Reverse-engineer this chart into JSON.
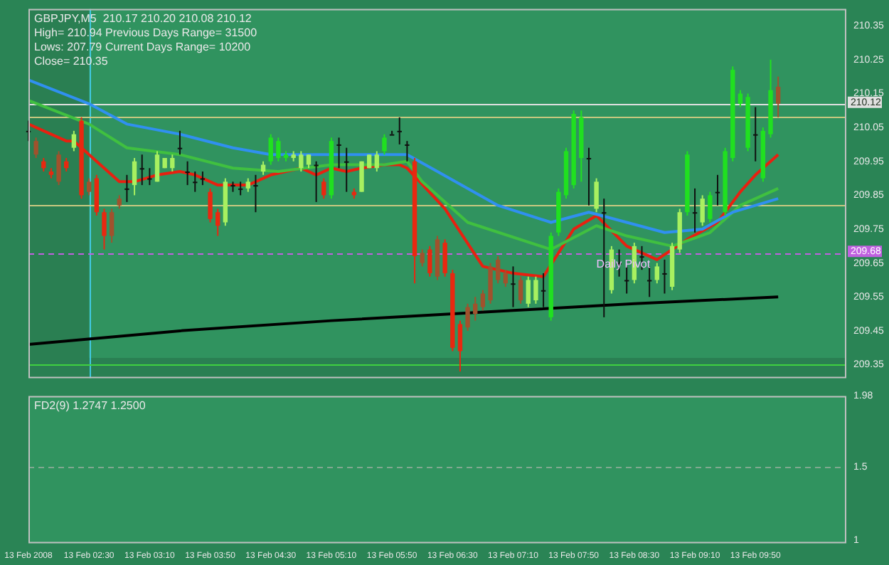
{
  "chart_data": [
    {
      "type": "candlestick",
      "title": "GBPJPY,M5  210.17 210.20 210.08 210.12",
      "annotations": [
        "High= 210.94",
        "Previous Days Range= 31500",
        "Lows: 207.79",
        "Current Days Range= 10200",
        "Close= 210.35",
        {
          "text": "Daily Pivot",
          "x": "2008-02-13T08:05",
          "y": 209.68
        }
      ],
      "x": [
        "2008-02-13T01:50",
        "2008-02-13T01:55",
        "2008-02-13T02:00",
        "2008-02-13T02:05",
        "2008-02-13T02:10",
        "2008-02-13T02:15",
        "2008-02-13T02:20",
        "2008-02-13T02:25",
        "2008-02-13T02:30",
        "2008-02-13T02:35",
        "2008-02-13T02:40",
        "2008-02-13T02:45",
        "2008-02-13T02:50",
        "2008-02-13T02:55",
        "2008-02-13T03:00",
        "2008-02-13T03:05",
        "2008-02-13T03:10",
        "2008-02-13T03:15",
        "2008-02-13T03:20",
        "2008-02-13T03:25",
        "2008-02-13T03:30",
        "2008-02-13T03:35",
        "2008-02-13T03:40",
        "2008-02-13T03:45",
        "2008-02-13T03:50",
        "2008-02-13T03:55",
        "2008-02-13T04:00",
        "2008-02-13T04:05",
        "2008-02-13T04:10",
        "2008-02-13T04:15",
        "2008-02-13T04:20",
        "2008-02-13T04:25",
        "2008-02-13T04:30",
        "2008-02-13T04:35",
        "2008-02-13T04:40",
        "2008-02-13T04:45",
        "2008-02-13T04:50",
        "2008-02-13T04:55",
        "2008-02-13T05:00",
        "2008-02-13T05:05",
        "2008-02-13T05:10",
        "2008-02-13T05:15",
        "2008-02-13T05:20",
        "2008-02-13T05:25",
        "2008-02-13T05:30",
        "2008-02-13T05:35",
        "2008-02-13T05:40",
        "2008-02-13T05:45",
        "2008-02-13T05:50",
        "2008-02-13T05:55",
        "2008-02-13T06:00",
        "2008-02-13T06:05",
        "2008-02-13T06:10",
        "2008-02-13T06:15",
        "2008-02-13T06:20",
        "2008-02-13T06:25",
        "2008-02-13T06:30",
        "2008-02-13T06:35",
        "2008-02-13T06:40",
        "2008-02-13T06:45",
        "2008-02-13T06:50",
        "2008-02-13T06:55",
        "2008-02-13T07:00",
        "2008-02-13T07:05",
        "2008-02-13T07:10",
        "2008-02-13T07:15",
        "2008-02-13T07:20",
        "2008-02-13T07:25",
        "2008-02-13T07:30",
        "2008-02-13T07:35",
        "2008-02-13T07:40",
        "2008-02-13T07:45",
        "2008-02-13T07:50",
        "2008-02-13T07:55",
        "2008-02-13T08:00",
        "2008-02-13T08:05",
        "2008-02-13T08:10",
        "2008-02-13T08:15",
        "2008-02-13T08:20",
        "2008-02-13T08:25",
        "2008-02-13T08:30",
        "2008-02-13T08:35",
        "2008-02-13T08:40",
        "2008-02-13T08:45",
        "2008-02-13T08:50",
        "2008-02-13T08:55",
        "2008-02-13T09:00",
        "2008-02-13T09:05",
        "2008-02-13T09:10",
        "2008-02-13T09:15",
        "2008-02-13T09:20",
        "2008-02-13T09:25",
        "2008-02-13T09:30",
        "2008-02-13T09:35",
        "2008-02-13T09:40",
        "2008-02-13T09:45",
        "2008-02-13T09:50",
        "2008-02-13T09:55",
        "2008-02-13T10:00",
        "2008-02-13T10:05"
      ],
      "ohlc": [
        [
          210.04,
          210.07,
          210.01,
          210.04
        ],
        [
          210.01,
          210.02,
          209.96,
          209.97
        ],
        [
          209.95,
          209.96,
          209.92,
          209.93
        ],
        [
          209.92,
          209.93,
          209.9,
          209.91
        ],
        [
          209.97,
          209.98,
          209.88,
          209.89
        ],
        [
          209.95,
          209.96,
          209.92,
          209.93
        ],
        [
          209.99,
          210.04,
          209.98,
          210.03
        ],
        [
          210.07,
          210.08,
          209.84,
          209.85
        ],
        [
          209.89,
          209.9,
          209.85,
          209.86
        ],
        [
          209.9,
          209.91,
          209.79,
          209.8
        ],
        [
          209.8,
          209.81,
          209.69,
          209.73
        ],
        [
          209.8,
          209.81,
          209.71,
          209.73
        ],
        [
          209.84,
          209.85,
          209.81,
          209.82
        ],
        [
          209.87,
          209.91,
          209.83,
          209.87
        ],
        [
          209.88,
          209.96,
          209.85,
          209.95
        ],
        [
          209.93,
          209.97,
          209.88,
          209.93
        ],
        [
          209.9,
          209.93,
          209.88,
          209.9
        ],
        [
          209.89,
          209.98,
          209.89,
          209.97
        ],
        [
          209.93,
          209.96,
          209.93,
          209.96
        ],
        [
          209.93,
          209.97,
          209.92,
          209.96
        ],
        [
          209.99,
          210.04,
          209.97,
          209.99
        ],
        [
          209.92,
          209.95,
          209.88,
          209.92
        ],
        [
          209.89,
          209.92,
          209.86,
          209.89
        ],
        [
          209.9,
          209.92,
          209.88,
          209.9
        ],
        [
          209.86,
          209.87,
          209.77,
          209.78
        ],
        [
          209.8,
          209.81,
          209.73,
          209.76
        ],
        [
          209.77,
          209.9,
          209.76,
          209.89
        ],
        [
          209.88,
          209.89,
          209.86,
          209.88
        ],
        [
          209.87,
          209.89,
          209.85,
          209.87
        ],
        [
          209.87,
          209.9,
          209.86,
          209.89
        ],
        [
          209.88,
          209.91,
          209.8,
          209.88
        ],
        [
          209.92,
          209.95,
          209.91,
          209.94
        ],
        [
          209.95,
          210.03,
          209.94,
          210.02
        ],
        [
          209.96,
          210.02,
          209.95,
          210.01
        ],
        [
          209.96,
          209.98,
          209.95,
          209.97
        ],
        [
          209.96,
          209.98,
          209.95,
          209.97
        ],
        [
          209.93,
          209.98,
          209.92,
          209.97
        ],
        [
          209.94,
          209.97,
          209.93,
          209.97
        ],
        [
          209.94,
          209.95,
          209.83,
          209.94
        ],
        [
          209.89,
          209.9,
          209.84,
          209.85
        ],
        [
          209.85,
          210.02,
          209.84,
          210.01
        ],
        [
          210.0,
          210.02,
          209.93,
          210.0
        ],
        [
          209.95,
          209.99,
          209.86,
          209.95
        ],
        [
          209.86,
          209.87,
          209.84,
          209.85
        ],
        [
          209.86,
          209.95,
          209.86,
          209.95
        ],
        [
          209.93,
          209.97,
          209.93,
          209.97
        ],
        [
          209.93,
          209.98,
          209.92,
          209.97
        ],
        [
          209.98,
          210.03,
          209.97,
          210.02
        ],
        [
          210.03,
          210.04,
          210.03,
          210.03
        ],
        [
          210.04,
          210.08,
          210.0,
          210.04
        ],
        [
          210.0,
          210.01,
          209.95,
          210.0
        ],
        [
          209.95,
          209.96,
          209.59,
          209.67
        ],
        [
          209.68,
          209.69,
          209.64,
          209.65
        ],
        [
          209.69,
          209.7,
          209.61,
          209.62
        ],
        [
          209.72,
          209.73,
          209.6,
          209.61
        ],
        [
          209.71,
          209.72,
          209.61,
          209.62
        ],
        [
          209.62,
          209.63,
          209.39,
          209.4
        ],
        [
          209.47,
          209.48,
          209.33,
          209.39
        ],
        [
          209.52,
          209.53,
          209.45,
          209.46
        ],
        [
          209.53,
          209.55,
          209.48,
          209.5
        ],
        [
          209.56,
          209.57,
          209.51,
          209.52
        ],
        [
          209.64,
          209.65,
          209.53,
          209.54
        ],
        [
          209.66,
          209.67,
          209.59,
          209.6
        ],
        [
          209.62,
          209.63,
          209.58,
          209.59
        ],
        [
          209.59,
          209.64,
          209.52,
          209.59
        ],
        [
          209.6,
          209.61,
          209.53,
          209.54
        ],
        [
          209.53,
          209.61,
          209.52,
          209.6
        ],
        [
          209.54,
          209.61,
          209.53,
          209.6
        ],
        [
          209.57,
          209.62,
          209.52,
          209.57
        ],
        [
          209.49,
          209.74,
          209.48,
          209.73
        ],
        [
          209.74,
          209.87,
          209.73,
          209.86
        ],
        [
          209.85,
          209.99,
          209.84,
          209.98
        ],
        [
          209.88,
          210.1,
          209.87,
          210.09
        ],
        [
          209.96,
          210.1,
          209.89,
          210.08
        ],
        [
          209.96,
          209.99,
          209.82,
          209.96
        ],
        [
          209.81,
          209.9,
          209.8,
          209.89
        ],
        [
          209.8,
          209.84,
          209.49,
          209.8
        ],
        [
          209.57,
          209.7,
          209.56,
          209.69
        ],
        [
          209.65,
          209.69,
          209.61,
          209.65
        ],
        [
          209.6,
          209.64,
          209.56,
          209.6
        ],
        [
          209.6,
          209.71,
          209.59,
          209.7
        ],
        [
          209.67,
          209.7,
          209.63,
          209.67
        ],
        [
          209.6,
          209.64,
          209.55,
          209.6
        ],
        [
          209.6,
          209.65,
          209.59,
          209.64
        ],
        [
          209.62,
          209.66,
          209.56,
          209.62
        ],
        [
          209.58,
          209.71,
          209.57,
          209.7
        ],
        [
          209.69,
          209.81,
          209.68,
          209.8
        ],
        [
          209.8,
          209.98,
          209.79,
          209.97
        ],
        [
          209.8,
          209.87,
          209.74,
          209.8
        ],
        [
          209.77,
          209.85,
          209.76,
          209.84
        ],
        [
          209.78,
          209.86,
          209.77,
          209.85
        ],
        [
          209.86,
          209.91,
          209.82,
          209.86
        ],
        [
          209.8,
          209.99,
          209.79,
          209.98
        ],
        [
          209.96,
          210.23,
          209.95,
          210.22
        ],
        [
          210.12,
          210.16,
          210.11,
          210.15
        ],
        [
          209.99,
          210.15,
          209.98,
          210.14
        ],
        [
          210.03,
          210.11,
          209.95,
          210.03
        ],
        [
          209.9,
          210.05,
          209.89,
          210.04
        ],
        [
          210.03,
          210.25,
          210.02,
          210.16
        ],
        [
          210.17,
          210.2,
          210.08,
          210.12
        ]
      ],
      "colors": [
        "#101010",
        "#a0522d",
        "#e82810",
        "#e82810",
        "#a0522d",
        "#e82810",
        "#a8f060",
        "#e82810",
        "#a0522d",
        "#e82810",
        "#e82810",
        "#a0522d",
        "#a0522d",
        "#101010",
        "#a8f060",
        "#101010",
        "#101010",
        "#a8f060",
        "#a8f060",
        "#a8f060",
        "#101010",
        "#101010",
        "#101010",
        "#101010",
        "#e82810",
        "#e82810",
        "#a8f060",
        "#101010",
        "#101010",
        "#a8f060",
        "#101010",
        "#a8f060",
        "#20e020",
        "#20e020",
        "#20e020",
        "#a8f060",
        "#a8f060",
        "#a8f060",
        "#101010",
        "#e82810",
        "#20e020",
        "#101010",
        "#101010",
        "#e82810",
        "#a8f060",
        "#a8f060",
        "#a8f060",
        "#20e020",
        "#101010",
        "#101010",
        "#101010",
        "#e82810",
        "#a0522d",
        "#e82810",
        "#a0522d",
        "#e82810",
        "#e82810",
        "#e82810",
        "#a0522d",
        "#a0522d",
        "#a0522d",
        "#a0522d",
        "#a0522d",
        "#a0522d",
        "#101010",
        "#a0522d",
        "#a8f060",
        "#a8f060",
        "#101010",
        "#20e020",
        "#20e020",
        "#20e020",
        "#20e020",
        "#20e020",
        "#101010",
        "#a8f060",
        "#101010",
        "#a8f060",
        "#101010",
        "#101010",
        "#a8f060",
        "#101010",
        "#101010",
        "#a8f060",
        "#101010",
        "#a8f060",
        "#a8f060",
        "#20e020",
        "#101010",
        "#a8f060",
        "#20e020",
        "#101010",
        "#20e020",
        "#20e020",
        "#20e020",
        "#20e020",
        "#101010",
        "#20e020",
        "#20e020",
        "#a0522d"
      ],
      "series": [
        {
          "type": "line",
          "color": "#3090f0",
          "x": [
            "2008-02-13T01:50",
            "2008-02-13T02:30",
            "2008-02-13T02:55",
            "2008-02-13T03:30",
            "2008-02-13T04:05",
            "2008-02-13T04:30",
            "2008-02-13T05:10",
            "2008-02-13T05:45",
            "2008-02-13T06:00",
            "2008-02-13T06:20",
            "2008-02-13T07:00",
            "2008-02-13T07:35",
            "2008-02-13T08:00",
            "2008-02-13T08:25",
            "2008-02-13T08:50",
            "2008-02-13T09:15",
            "2008-02-13T09:35",
            "2008-02-13T10:05"
          ],
          "values": [
            210.19,
            210.12,
            210.06,
            210.03,
            209.99,
            209.97,
            209.97,
            209.97,
            209.97,
            209.92,
            209.82,
            209.77,
            209.8,
            209.77,
            209.74,
            209.75,
            209.8,
            209.84
          ]
        },
        {
          "type": "line",
          "color": "#40c040",
          "x": [
            "2008-02-13T01:50",
            "2008-02-13T02:30",
            "2008-02-13T02:55",
            "2008-02-13T03:30",
            "2008-02-13T04:05",
            "2008-02-13T04:35",
            "2008-02-13T05:10",
            "2008-02-13T05:45",
            "2008-02-13T06:00",
            "2008-02-13T06:10",
            "2008-02-13T06:40",
            "2008-02-13T07:35",
            "2008-02-13T08:05",
            "2008-02-13T08:25",
            "2008-02-13T08:55",
            "2008-02-13T09:20",
            "2008-02-13T09:40",
            "2008-02-13T10:05"
          ],
          "values": [
            210.13,
            210.06,
            209.99,
            209.97,
            209.93,
            209.92,
            209.94,
            209.94,
            209.95,
            209.89,
            209.77,
            209.69,
            209.76,
            209.73,
            209.7,
            209.74,
            209.82,
            209.87
          ]
        },
        {
          "type": "line",
          "color": "#e82010",
          "x": [
            "2008-02-13T01:50",
            "2008-02-13T02:00",
            "2008-02-13T02:15",
            "2008-02-13T02:20",
            "2008-02-13T02:35",
            "2008-02-13T02:50",
            "2008-02-13T03:00",
            "2008-02-13T03:15",
            "2008-02-13T03:30",
            "2008-02-13T03:40",
            "2008-02-13T03:55",
            "2008-02-13T04:15",
            "2008-02-13T04:30",
            "2008-02-13T04:50",
            "2008-02-13T05:00",
            "2008-02-13T05:10",
            "2008-02-13T05:20",
            "2008-02-13T05:30",
            "2008-02-13T05:45",
            "2008-02-13T05:55",
            "2008-02-13T06:00",
            "2008-02-13T06:25",
            "2008-02-13T06:50",
            "2008-02-13T07:10",
            "2008-02-13T07:30",
            "2008-02-13T07:50",
            "2008-02-13T08:05",
            "2008-02-13T08:25",
            "2008-02-13T08:45",
            "2008-02-13T09:05",
            "2008-02-13T09:25",
            "2008-02-13T09:40",
            "2008-02-13T09:50",
            "2008-02-13T10:05"
          ],
          "values": [
            210.06,
            210.04,
            210.01,
            210.01,
            209.95,
            209.89,
            209.89,
            209.91,
            209.92,
            209.91,
            209.88,
            209.88,
            209.91,
            209.93,
            209.91,
            209.93,
            209.92,
            209.93,
            209.94,
            209.94,
            209.93,
            209.81,
            209.64,
            209.62,
            209.61,
            209.75,
            209.79,
            209.7,
            209.66,
            209.72,
            209.77,
            209.86,
            209.91,
            209.97
          ]
        },
        {
          "type": "line",
          "color": "#000000",
          "x": [
            "2008-02-13T01:50",
            "2008-02-13T03:30",
            "2008-02-13T05:10",
            "2008-02-13T07:10",
            "2008-02-13T08:30",
            "2008-02-13T10:05"
          ],
          "values": [
            209.41,
            209.45,
            209.48,
            209.51,
            209.53,
            209.55
          ]
        }
      ],
      "xlim": [
        "2008-02-13T01:50",
        "2008-02-13T10:50"
      ],
      "ylim": [
        209.31,
        210.4
      ],
      "yticks": [
        209.35,
        209.45,
        209.55,
        209.65,
        209.75,
        209.85,
        209.95,
        210.05,
        210.15,
        210.25,
        210.35
      ],
      "tick_labels": "y",
      "bands": [
        {
          "axis": "x",
          "from": "2008-02-13T01:50",
          "to": "2008-02-13T02:30",
          "color": "#2a7f52"
        },
        {
          "axis": "y",
          "from": 209.31,
          "to": 209.37,
          "color": "#2a7f52"
        }
      ],
      "ref_lines": [
        {
          "axis": "x",
          "value": "2008-02-13T02:30",
          "color": "#40c8e0"
        },
        {
          "axis": "y",
          "value": 210.12,
          "label": "210.12",
          "color": "#e0e0e0"
        },
        {
          "axis": "y",
          "value": 210.08,
          "color": "#c8c880"
        },
        {
          "axis": "y",
          "value": 209.82,
          "color": "#c8c880"
        },
        {
          "axis": "y",
          "value": 209.68,
          "label": "209.68",
          "color": "#c060e0",
          "line_style": "dashed"
        },
        {
          "axis": "y",
          "value": 209.35,
          "color": "#40d040"
        }
      ]
    },
    {
      "type": "line",
      "title": "FD2(9) 1.2747 1.2500",
      "xlim": [
        "2008-02-13T01:50",
        "2008-02-13T10:50"
      ],
      "xticks": [
        {
          "value": "2008-02-13T01:50",
          "label": "13 Feb 2008"
        },
        {
          "value": "2008-02-13T02:30",
          "label": "13 Feb 02:30"
        },
        {
          "value": "2008-02-13T03:10",
          "label": "13 Feb 03:10"
        },
        {
          "value": "2008-02-13T03:50",
          "label": "13 Feb 03:50"
        },
        {
          "value": "2008-02-13T04:30",
          "label": "13 Feb 04:30"
        },
        {
          "value": "2008-02-13T05:10",
          "label": "13 Feb 05:10"
        },
        {
          "value": "2008-02-13T05:50",
          "label": "13 Feb 05:50"
        },
        {
          "value": "2008-02-13T06:30",
          "label": "13 Feb 06:30"
        },
        {
          "value": "2008-02-13T07:10",
          "label": "13 Feb 07:10"
        },
        {
          "value": "2008-02-13T07:50",
          "label": "13 Feb 07:50"
        },
        {
          "value": "2008-02-13T08:30",
          "label": "13 Feb 08:30"
        },
        {
          "value": "2008-02-13T09:10",
          "label": "13 Feb 09:10"
        },
        {
          "value": "2008-02-13T09:50",
          "label": "13 Feb 09:50"
        }
      ],
      "ylim": [
        0.98,
        1.98
      ],
      "yticks": [
        1,
        1.5,
        1.98
      ],
      "ref_lines": [
        {
          "axis": "y",
          "value": 1.5,
          "color": "#80a890",
          "line_style": "dashed"
        }
      ]
    }
  ]
}
